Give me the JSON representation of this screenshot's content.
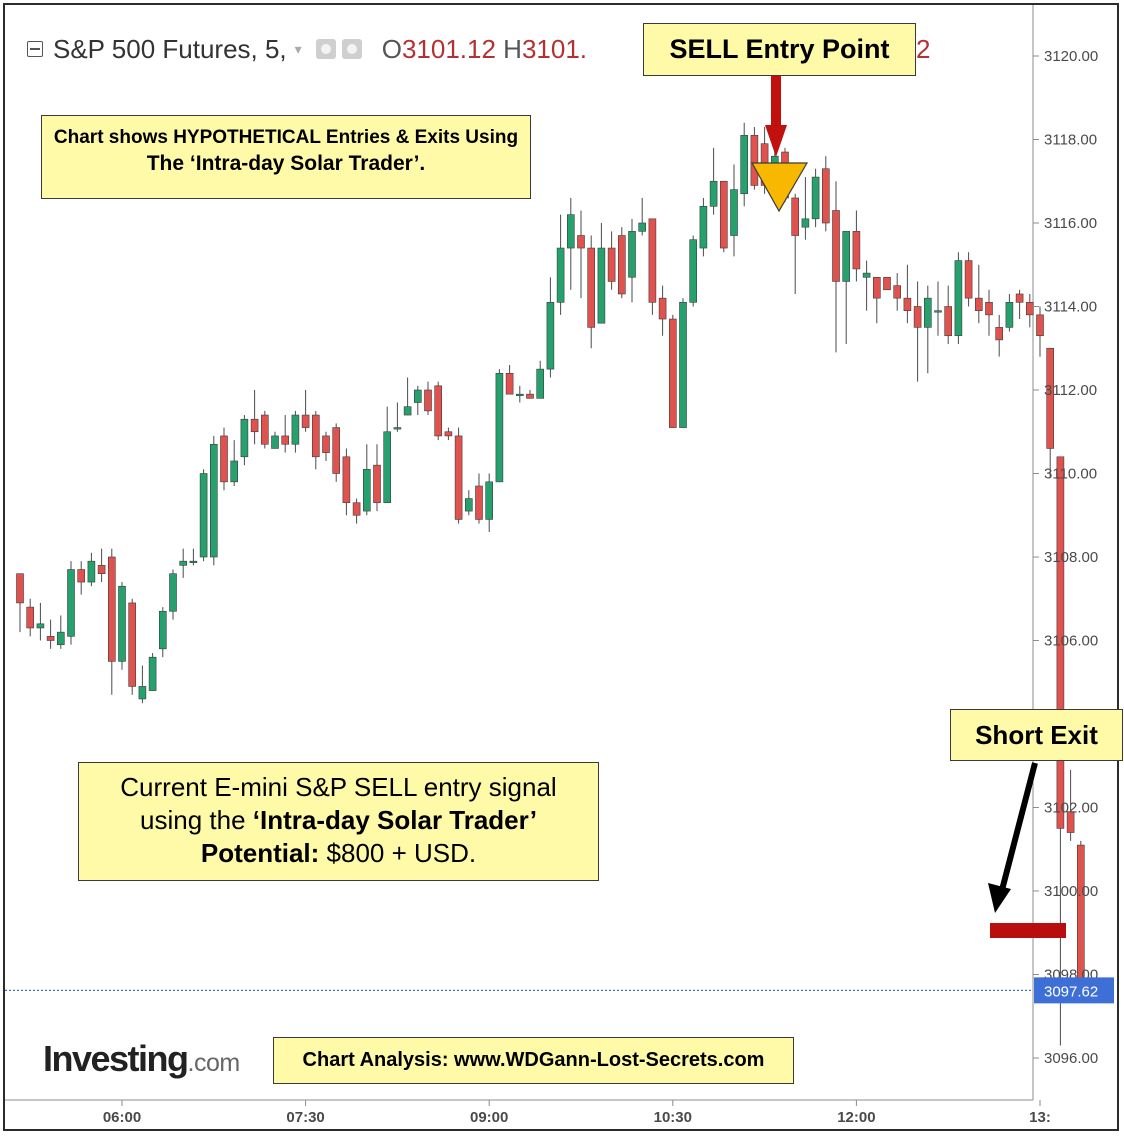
{
  "header": {
    "symbol": "S&P 500 Futures, 5,",
    "open_label": "O",
    "open_value": "3101.12",
    "high_label": "H",
    "high_value": "3101.",
    "tail_value": "2"
  },
  "annotations": {
    "sell_entry": "SELL Entry Point",
    "short_exit": "Short Exit",
    "note_line1": "Chart shows HYPOTHETICAL  Entries & Exits Using",
    "note_line2": "The ‘Intra-day Solar Trader’.",
    "signal_line1": "Current E-mini S&P SELL entry signal",
    "signal_line2a": "using the ",
    "signal_line2b": "‘Intra-day Solar Trader’",
    "signal_line3a": "Potential: ",
    "signal_line3b": "$800 + USD.",
    "analysis": "Chart Analysis: www.WDGann-Lost-Secrets.com"
  },
  "brand": {
    "main": "Investing",
    "sub": ".com"
  },
  "colors": {
    "up": "#26a06d",
    "down": "#e0524d",
    "arrow_red": "#c0110f",
    "signal_triangle": "#f9b800",
    "exit_arrow": "#000000",
    "exit_marker": "#b80e0e",
    "last_price_line": "#3d6fd6",
    "last_price_badge": "#3d6fd6",
    "callout_bg": "#fefaa8"
  },
  "chart_data": {
    "type": "candlestick",
    "title": "S&P 500 Futures, 5,",
    "ylim": [
      3094.6,
      3121.0
    ],
    "y_ticks": [
      "3096.00",
      "3098.00",
      "3100.00",
      "3102.00",
      "3106.00",
      "3108.00",
      "3110.00",
      "3112.00",
      "3114.00",
      "3116.00",
      "3118.00",
      "3120.00"
    ],
    "x_ticks": [
      {
        "label": "06:00",
        "bar": 10
      },
      {
        "label": "07:30",
        "bar": 28
      },
      {
        "label": "09:00",
        "bar": 46
      },
      {
        "label": "10:30",
        "bar": 64
      },
      {
        "label": "12:00",
        "bar": 82
      },
      {
        "label": "13:",
        "bar": 100
      }
    ],
    "last_price": 3097.62,
    "last_price_label": "3097.62",
    "candles": [
      [
        3107.6,
        3106.9,
        3107.6,
        3106.2
      ],
      [
        3106.8,
        3106.3,
        3107.0,
        3106.1
      ],
      [
        3106.3,
        3106.4,
        3106.9,
        3106.0
      ],
      [
        3106.1,
        3106.0,
        3106.5,
        3105.8
      ],
      [
        3105.9,
        3106.2,
        3106.6,
        3105.8
      ],
      [
        3106.1,
        3107.7,
        3107.9,
        3105.9
      ],
      [
        3107.7,
        3107.4,
        3107.9,
        3107.1
      ],
      [
        3107.4,
        3107.9,
        3108.1,
        3107.3
      ],
      [
        3107.8,
        3107.6,
        3108.2,
        3107.4
      ],
      [
        3108.0,
        3105.5,
        3108.2,
        3104.7
      ],
      [
        3105.5,
        3107.3,
        3107.4,
        3105.3
      ],
      [
        3106.9,
        3104.9,
        3107.0,
        3104.7
      ],
      [
        3104.6,
        3104.9,
        3105.4,
        3104.5
      ],
      [
        3104.8,
        3105.6,
        3105.7,
        3104.8
      ],
      [
        3105.8,
        3106.7,
        3106.8,
        3105.6
      ],
      [
        3106.7,
        3107.6,
        3107.7,
        3106.5
      ],
      [
        3107.8,
        3107.9,
        3108.2,
        3107.5
      ],
      [
        3107.9,
        3107.9,
        3108.2,
        3107.8
      ],
      [
        3108.0,
        3110.0,
        3110.1,
        3107.9
      ],
      [
        3108.0,
        3110.7,
        3110.9,
        3107.8
      ],
      [
        3110.9,
        3109.8,
        3111.1,
        3109.6
      ],
      [
        3109.8,
        3110.3,
        3110.8,
        3109.7
      ],
      [
        3110.4,
        3111.3,
        3111.4,
        3110.2
      ],
      [
        3111.3,
        3111.0,
        3112.0,
        3110.7
      ],
      [
        3111.4,
        3110.7,
        3111.5,
        3110.6
      ],
      [
        3110.6,
        3110.9,
        3111.0,
        3110.6
      ],
      [
        3110.9,
        3110.7,
        3111.4,
        3110.5
      ],
      [
        3110.7,
        3111.4,
        3111.5,
        3110.5
      ],
      [
        3111.4,
        3111.1,
        3112.0,
        3111.0
      ],
      [
        3111.4,
        3110.4,
        3111.5,
        3110.1
      ],
      [
        3110.9,
        3110.5,
        3111.0,
        3110.3
      ],
      [
        3111.1,
        3110.0,
        3111.2,
        3109.8
      ],
      [
        3110.4,
        3109.3,
        3110.6,
        3109.0
      ],
      [
        3109.3,
        3109.0,
        3109.4,
        3108.8
      ],
      [
        3109.1,
        3110.1,
        3110.7,
        3109.0
      ],
      [
        3110.2,
        3109.3,
        3110.7,
        3109.1
      ],
      [
        3109.3,
        3111.0,
        3111.6,
        3109.3
      ],
      [
        3111.1,
        3111.1,
        3111.7,
        3111.0
      ],
      [
        3111.4,
        3111.6,
        3112.3,
        3111.4
      ],
      [
        3111.7,
        3112.0,
        3112.1,
        3111.4
      ],
      [
        3112.0,
        3111.5,
        3112.2,
        3111.4
      ],
      [
        3112.1,
        3110.9,
        3112.2,
        3110.8
      ],
      [
        3111.0,
        3110.9,
        3111.1,
        3110.8
      ],
      [
        3110.9,
        3108.9,
        3111.1,
        3108.8
      ],
      [
        3109.1,
        3109.4,
        3109.6,
        3109.0
      ],
      [
        3109.7,
        3108.9,
        3110.0,
        3108.8
      ],
      [
        3108.9,
        3109.8,
        3110.0,
        3108.6
      ],
      [
        3109.8,
        3112.4,
        3112.5,
        3109.8
      ],
      [
        3112.4,
        3111.9,
        3112.6,
        3111.9
      ],
      [
        3111.9,
        3111.9,
        3112.1,
        3111.7
      ],
      [
        3111.9,
        3111.8,
        3112.0,
        3111.8
      ],
      [
        3111.8,
        3112.5,
        3112.7,
        3111.8
      ],
      [
        3112.5,
        3114.1,
        3114.7,
        3112.3
      ],
      [
        3114.1,
        3115.4,
        3116.2,
        3113.8
      ],
      [
        3115.4,
        3116.2,
        3116.6,
        3114.4
      ],
      [
        3115.7,
        3115.4,
        3116.3,
        3114.2
      ],
      [
        3115.4,
        3113.5,
        3115.7,
        3113.0
      ],
      [
        3113.6,
        3115.4,
        3116.0,
        3113.6
      ],
      [
        3115.4,
        3114.6,
        3115.8,
        3114.4
      ],
      [
        3115.7,
        3114.3,
        3115.9,
        3114.2
      ],
      [
        3114.7,
        3115.8,
        3116.1,
        3114.1
      ],
      [
        3115.8,
        3116.0,
        3116.6,
        3115.7
      ],
      [
        3116.1,
        3114.1,
        3116.1,
        3113.8
      ],
      [
        3114.2,
        3113.7,
        3114.5,
        3113.3
      ],
      [
        3113.7,
        3111.1,
        3113.8,
        3111.1
      ],
      [
        3111.1,
        3114.1,
        3114.2,
        3111.1
      ],
      [
        3114.1,
        3115.6,
        3115.7,
        3114.0
      ],
      [
        3115.4,
        3116.4,
        3116.6,
        3115.2
      ],
      [
        3116.4,
        3117.0,
        3117.8,
        3116.2
      ],
      [
        3117.0,
        3115.4,
        3117.0,
        3115.3
      ],
      [
        3115.7,
        3116.8,
        3117.4,
        3115.2
      ],
      [
        3116.7,
        3118.1,
        3118.4,
        3116.4
      ],
      [
        3118.1,
        3116.9,
        3118.3,
        3116.8
      ],
      [
        3117.9,
        3116.9,
        3118.3,
        3116.7
      ],
      [
        3116.9,
        3117.6,
        3118.0,
        3116.8
      ],
      [
        3117.7,
        3116.6,
        3117.8,
        3116.5
      ],
      [
        3116.6,
        3115.7,
        3116.7,
        3114.3
      ],
      [
        3115.9,
        3116.1,
        3117.1,
        3115.6
      ],
      [
        3116.1,
        3117.1,
        3117.3,
        3115.9
      ],
      [
        3117.3,
        3116.0,
        3117.6,
        3115.8
      ],
      [
        3116.3,
        3114.6,
        3117.0,
        3112.9
      ],
      [
        3114.6,
        3115.8,
        3115.8,
        3113.1
      ],
      [
        3115.8,
        3114.9,
        3116.3,
        3114.6
      ],
      [
        3114.7,
        3114.8,
        3115.1,
        3113.9
      ],
      [
        3114.7,
        3114.2,
        3114.7,
        3113.6
      ],
      [
        3114.7,
        3114.4,
        3114.7,
        3114.4
      ],
      [
        3114.5,
        3114.2,
        3114.8,
        3113.9
      ],
      [
        3114.2,
        3113.9,
        3115.0,
        3113.6
      ],
      [
        3114.0,
        3113.5,
        3114.6,
        3112.2
      ],
      [
        3113.5,
        3114.2,
        3114.5,
        3112.4
      ],
      [
        3113.9,
        3113.9,
        3114.6,
        3113.3
      ],
      [
        3114.0,
        3113.3,
        3114.5,
        3113.1
      ],
      [
        3113.3,
        3115.1,
        3115.3,
        3113.1
      ],
      [
        3115.1,
        3114.2,
        3115.3,
        3114.0
      ],
      [
        3114.2,
        3113.9,
        3115.0,
        3113.6
      ],
      [
        3114.1,
        3113.8,
        3114.4,
        3113.3
      ],
      [
        3113.5,
        3113.2,
        3113.8,
        3112.8
      ],
      [
        3113.5,
        3114.1,
        3114.3,
        3113.4
      ],
      [
        3114.3,
        3114.1,
        3114.4,
        3113.7
      ],
      [
        3114.1,
        3113.8,
        3114.3,
        3113.5
      ],
      [
        3113.8,
        3113.3,
        3114.0,
        3112.8
      ],
      [
        3113.0,
        3110.6,
        3113.0,
        3109.9
      ],
      [
        3110.4,
        3101.5,
        3110.4,
        3096.3
      ],
      [
        3101.9,
        3101.4,
        3102.9,
        3101.2
      ],
      [
        3101.1,
        3097.9,
        3101.2,
        3097.5
      ]
    ]
  }
}
